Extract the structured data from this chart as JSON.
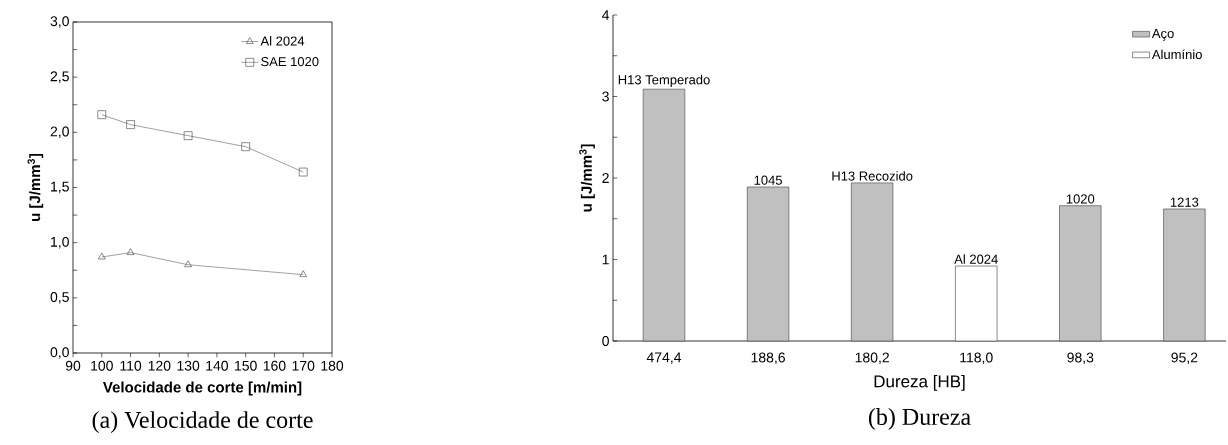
{
  "chart_data": [
    {
      "type": "line",
      "xlabel": "Velocidade de corte [m/min]",
      "ylabel": "u [J/mm$^{3}$]",
      "xlim": [
        90,
        180
      ],
      "xticks": [
        90,
        100,
        110,
        120,
        130,
        140,
        150,
        160,
        170,
        180
      ],
      "ylim": [
        0,
        3
      ],
      "yticks": [
        {
          "value": 0,
          "label": "0,0"
        },
        {
          "value": 0.25,
          "label": null
        },
        {
          "value": 0.5,
          "label": "0,5"
        },
        {
          "value": 0.75,
          "label": null
        },
        {
          "value": 1,
          "label": "1,0"
        },
        {
          "value": 1.25,
          "label": null
        },
        {
          "value": 1.5,
          "label": "1,5"
        },
        {
          "value": 1.75,
          "label": null
        },
        {
          "value": 2,
          "label": "2,0"
        },
        {
          "value": 2.25,
          "label": null
        },
        {
          "value": 2.5,
          "label": "2,5"
        },
        {
          "value": 2.75,
          "label": null
        },
        {
          "value": 3,
          "label": "3,0"
        }
      ],
      "x": [
        100,
        110,
        130,
        150,
        170
      ],
      "series": [
        {
          "name": "Al 2024",
          "color": "#404040",
          "marker": "triangle",
          "values": [
            0.87,
            0.91,
            0.8,
            null,
            0.71
          ]
        },
        {
          "name": "SAE 1020",
          "color": "#404040",
          "marker": "square",
          "values": [
            2.16,
            2.07,
            1.97,
            1.87,
            1.64
          ]
        }
      ],
      "legend": "top right",
      "annotations": [
        "(a) Velocidade de corte"
      ]
    },
    {
      "type": "bar",
      "xlabel": "Dureza [HB]",
      "ylabel": "u [J/mm$^{3}$]",
      "categories": [
        "474,4",
        "188,6",
        "180,2",
        "118,0",
        "98,3",
        "95,2"
      ],
      "ylim": [
        0,
        4
      ],
      "yticks": [
        0,
        {
          "value": 0.5,
          "label": null
        },
        1,
        {
          "value": 1.5,
          "label": null
        },
        2,
        {
          "value": 2.5,
          "label": null
        },
        3,
        {
          "value": 3.5,
          "label": null
        },
        4
      ],
      "series": [
        {
          "name": "Aço",
          "color": "#c0c0c0",
          "values": [
            3.09,
            1.89,
            1.94,
            null,
            1.66,
            1.62
          ]
        },
        {
          "name": "Alumínio",
          "color": "#ffffff",
          "values": [
            null,
            null,
            null,
            0.92,
            null,
            null
          ]
        }
      ],
      "legend": "top right",
      "annotations": [
        "(b) Dureza",
        {
          "text": "H13 Temperado",
          "x": "474,4",
          "y": 3.09
        },
        {
          "text": "1045",
          "x": "188,6",
          "y": 1.89
        },
        {
          "text": "H13 Recozido",
          "x": "180,2",
          "y": 1.94
        },
        {
          "text": "Al 2024",
          "x": "118,0",
          "y": 0.92
        },
        {
          "text": "1020",
          "x": "98,3",
          "y": 1.66
        },
        {
          "text": "1213",
          "x": "95,2",
          "y": 1.62
        }
      ]
    }
  ]
}
